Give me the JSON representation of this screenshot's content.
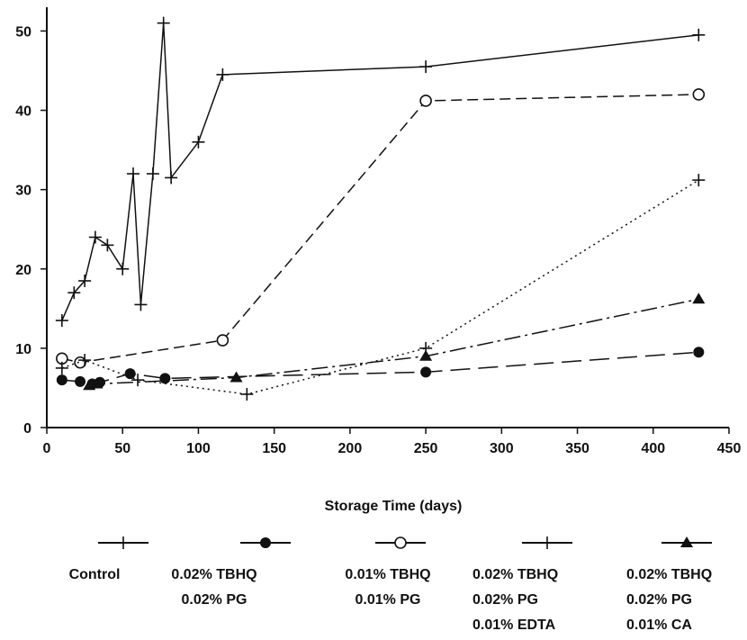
{
  "chart_data": {
    "type": "line",
    "title": "",
    "xlabel": "Storage Time (days)",
    "ylabel": "",
    "xlim": [
      0,
      450
    ],
    "ylim": [
      0,
      53
    ],
    "x_ticks": [
      0,
      50,
      100,
      150,
      200,
      250,
      300,
      350,
      400,
      450
    ],
    "y_ticks": [
      0,
      10,
      20,
      30,
      40,
      50
    ],
    "grid": false,
    "legend_placement": "bottom",
    "series": [
      {
        "name": "Control",
        "legend_lines": [
          "Control"
        ],
        "marker": "plus",
        "line_style": "solid",
        "points": [
          [
            10,
            13.5
          ],
          [
            18,
            17
          ],
          [
            25,
            18.5
          ],
          [
            32,
            24
          ],
          [
            40,
            23
          ],
          [
            50,
            20
          ],
          [
            57,
            32
          ],
          [
            62,
            15.5
          ],
          [
            70,
            32
          ],
          [
            77,
            51
          ],
          [
            82,
            31.5
          ],
          [
            100,
            36
          ],
          [
            116,
            44.5
          ],
          [
            250,
            45.5
          ],
          [
            430,
            49.5
          ]
        ]
      },
      {
        "name": "0.02% TBHQ 0.02% PG",
        "legend_lines": [
          "0.02% TBHQ",
          "0.02% PG"
        ],
        "marker": "filled-circle",
        "line_style": "long-dash",
        "points": [
          [
            10,
            6
          ],
          [
            22,
            5.8
          ],
          [
            30,
            5.5
          ],
          [
            35,
            5.7
          ],
          [
            55,
            6.8
          ],
          [
            78,
            6.2
          ],
          [
            250,
            7
          ],
          [
            430,
            9.5
          ]
        ]
      },
      {
        "name": "0.01% TBHQ 0.01% PG",
        "legend_lines": [
          "0.01% TBHQ",
          "0.01% PG"
        ],
        "marker": "open-circle",
        "line_style": "dashed",
        "points": [
          [
            10,
            8.7
          ],
          [
            22,
            8.2
          ],
          [
            116,
            11
          ],
          [
            250,
            41.2
          ],
          [
            430,
            42
          ]
        ]
      },
      {
        "name": "0.02% TBHQ 0.02% PG 0.01% EDTA",
        "legend_lines": [
          "0.02% TBHQ",
          "0.02% PG",
          "0.01% EDTA"
        ],
        "marker": "plus",
        "line_style": "dotted",
        "points": [
          [
            10,
            7.5
          ],
          [
            25,
            8.5
          ],
          [
            60,
            6
          ],
          [
            132,
            4.2
          ],
          [
            250,
            10
          ],
          [
            430,
            31.2
          ]
        ]
      },
      {
        "name": "0.02% TBHQ 0.02% PG 0.01% CA",
        "legend_lines": [
          "0.02% TBHQ",
          "0.02% PG",
          "0.01% CA"
        ],
        "marker": "filled-triangle",
        "line_style": "dash-dot",
        "points": [
          [
            28,
            5.3
          ],
          [
            33,
            5.5
          ],
          [
            125,
            6.3
          ],
          [
            250,
            9
          ],
          [
            430,
            16.2
          ]
        ]
      }
    ]
  }
}
